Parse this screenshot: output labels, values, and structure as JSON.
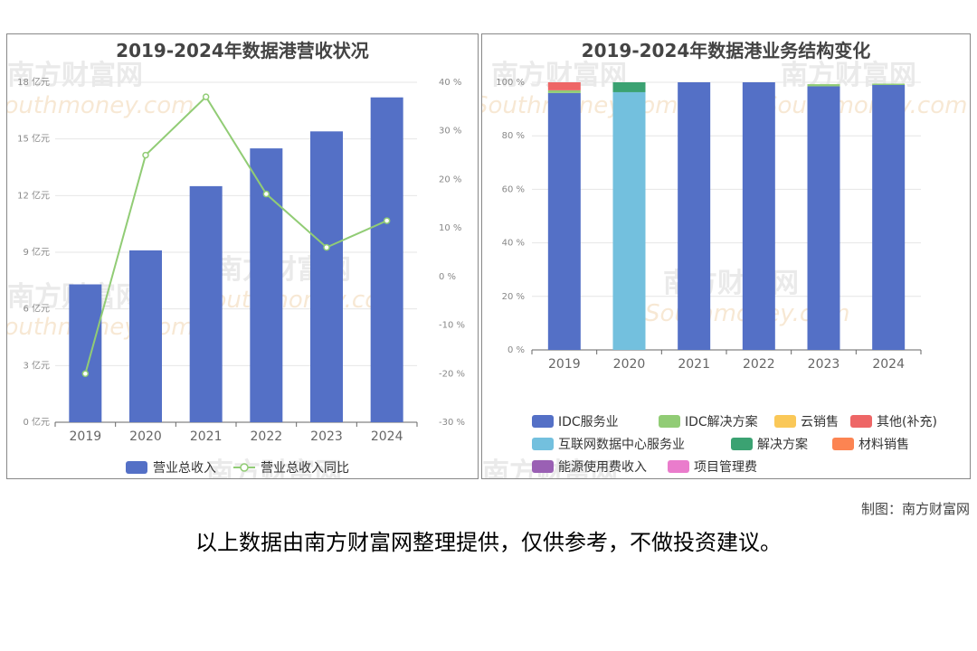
{
  "chart_data": [
    {
      "type": "bar",
      "title": "2019-2024年数据港营收状况",
      "categories": [
        "2019",
        "2020",
        "2021",
        "2022",
        "2023",
        "2024"
      ],
      "series": [
        {
          "name": "营业总收入",
          "type": "bar",
          "axis": "left",
          "values": [
            7.3,
            9.1,
            12.5,
            14.5,
            15.4,
            17.2
          ],
          "color": "#5470c6"
        },
        {
          "name": "营业总收入同比",
          "type": "line",
          "axis": "right",
          "values": [
            -20,
            25,
            37,
            17,
            6,
            11.5
          ],
          "color": "#91cc75"
        }
      ],
      "y_left": {
        "ticks": [
          "0 亿元",
          "3 亿元",
          "6 亿元",
          "9 亿元",
          "12 亿元",
          "15 亿元",
          "18 亿元"
        ],
        "ylim": [
          0,
          18
        ]
      },
      "y_right": {
        "ticks": [
          "-30 %",
          "-20 %",
          "-10 %",
          "0 %",
          "10 %",
          "20 %",
          "30 %",
          "40 %"
        ],
        "ylim": [
          -30,
          40
        ]
      },
      "legend_position": "bottom"
    },
    {
      "type": "bar",
      "stacked": true,
      "title": "2019-2024年数据港业务结构变化",
      "categories": [
        "2019",
        "2020",
        "2021",
        "2022",
        "2023",
        "2024"
      ],
      "series": [
        {
          "name": "IDC服务业",
          "values": [
            96,
            0,
            100,
            100,
            98.5,
            99
          ],
          "color": "#5470c6"
        },
        {
          "name": "IDC解决方案",
          "values": [
            1,
            0,
            0,
            0,
            0.8,
            0.5
          ],
          "color": "#91cc75"
        },
        {
          "name": "云销售",
          "values": [
            0,
            0,
            0,
            0,
            0,
            0
          ],
          "color": "#fac858"
        },
        {
          "name": "其他(补充)",
          "values": [
            3,
            0,
            0,
            0,
            0,
            0
          ],
          "color": "#ee6666"
        },
        {
          "name": "互联网数据中心服务业",
          "values": [
            0,
            96.3,
            0,
            0,
            0,
            0
          ],
          "color": "#73c0de"
        },
        {
          "name": "解决方案",
          "values": [
            0,
            3.7,
            0,
            0,
            0,
            0
          ],
          "color": "#3ba272"
        },
        {
          "name": "材料销售",
          "values": [
            0,
            0,
            0,
            0,
            0,
            0
          ],
          "color": "#fc8452"
        },
        {
          "name": "能源使用费收入",
          "values": [
            0,
            0,
            0,
            0,
            0,
            0
          ],
          "color": "#9a60b4"
        },
        {
          "name": "项目管理费",
          "values": [
            0,
            0,
            0,
            0,
            0,
            0
          ],
          "color": "#ea7ccc"
        }
      ],
      "y": {
        "ticks": [
          "0 %",
          "20 %",
          "40 %",
          "60 %",
          "80 %",
          "100 %"
        ],
        "ylim": [
          0,
          100
        ]
      },
      "legend_position": "bottom"
    }
  ],
  "watermark": {
    "cn": "南方财富网",
    "en": "Southmoney.com"
  },
  "credit": "制图：南方财富网",
  "disclaimer": "以上数据由南方财富网整理提供，仅供参考，不做投资建议。"
}
